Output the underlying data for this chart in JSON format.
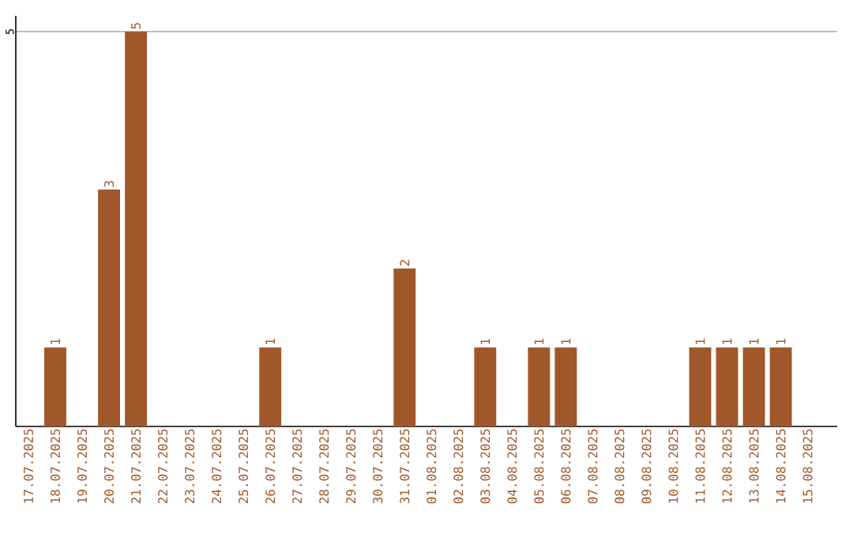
{
  "chart_data": {
    "type": "bar",
    "categories": [
      "17.07.2025",
      "18.07.2025",
      "19.07.2025",
      "20.07.2025",
      "21.07.2025",
      "22.07.2025",
      "23.07.2025",
      "24.07.2025",
      "25.07.2025",
      "26.07.2025",
      "27.07.2025",
      "28.07.2025",
      "29.07.2025",
      "30.07.2025",
      "31.07.2025",
      "01.08.2025",
      "02.08.2025",
      "03.08.2025",
      "04.08.2025",
      "05.08.2025",
      "06.08.2025",
      "07.08.2025",
      "08.08.2025",
      "09.08.2025",
      "10.08.2025",
      "11.08.2025",
      "12.08.2025",
      "13.08.2025",
      "14.08.2025",
      "15.08.2025"
    ],
    "values": [
      0,
      1,
      0,
      3,
      5,
      0,
      0,
      0,
      0,
      1,
      0,
      0,
      0,
      0,
      2,
      0,
      0,
      1,
      0,
      1,
      1,
      0,
      0,
      0,
      0,
      1,
      1,
      1,
      1,
      0
    ],
    "value_labels": [
      null,
      "1",
      null,
      "3",
      "5",
      null,
      null,
      null,
      null,
      "1",
      null,
      null,
      null,
      null,
      "2",
      null,
      null,
      "1",
      null,
      "1",
      "1",
      null,
      null,
      null,
      null,
      "1",
      "1",
      "1",
      "1",
      null
    ],
    "color": "#a0572a",
    "ylim": [
      0,
      5.2
    ],
    "yticks": [
      5
    ],
    "grid": "y"
  }
}
